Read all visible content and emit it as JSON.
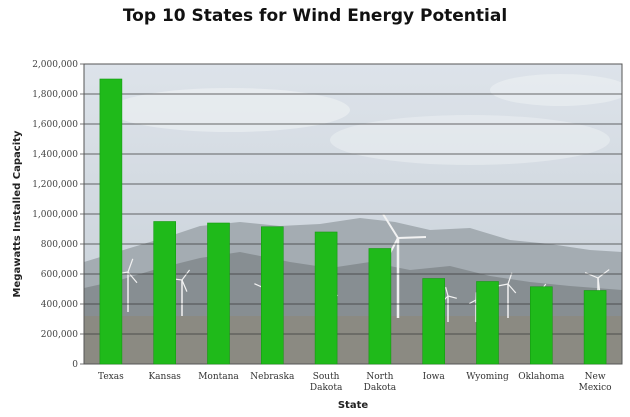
{
  "chart_data": {
    "type": "bar",
    "title": "Top 10 States for Wind Energy Potential",
    "xlabel": "State",
    "ylabel": "Megawatts Installed Capacity",
    "categories": [
      [
        "Texas"
      ],
      [
        "Kansas"
      ],
      [
        "Montana"
      ],
      [
        "Nebraska"
      ],
      [
        "South",
        "Dakota"
      ],
      [
        "North",
        "Dakota"
      ],
      [
        "Iowa"
      ],
      [
        "Wyoming"
      ],
      [
        "Oklahoma"
      ],
      [
        "New",
        "Mexico"
      ]
    ],
    "values": [
      1900000,
      950000,
      940000,
      915000,
      880000,
      770000,
      570000,
      550000,
      515000,
      490000
    ],
    "ylim": [
      0,
      2000000
    ],
    "yticks": [
      0,
      200000,
      400000,
      600000,
      800000,
      1000000,
      1200000,
      1400000,
      1600000,
      1800000,
      2000000
    ],
    "ytick_labels": [
      "0",
      "200,000",
      "400,000",
      "600,000",
      "800,000",
      "1,000,000",
      "1,200,000",
      "1,400,000",
      "1,600,000",
      "1,800,000",
      "2,000,000"
    ],
    "grid": true,
    "colors": {
      "bar": "#1fba1a",
      "bar_edge": "#149a12",
      "grid": "#3a3a3a",
      "sky_top": "#dde3ea",
      "sky_bottom": "#c6ced6",
      "mountain_far": "#a4acb2",
      "mountain_near": "#878e92",
      "ground": "#8b8a82",
      "turbine": "#f2f2f2"
    }
  }
}
